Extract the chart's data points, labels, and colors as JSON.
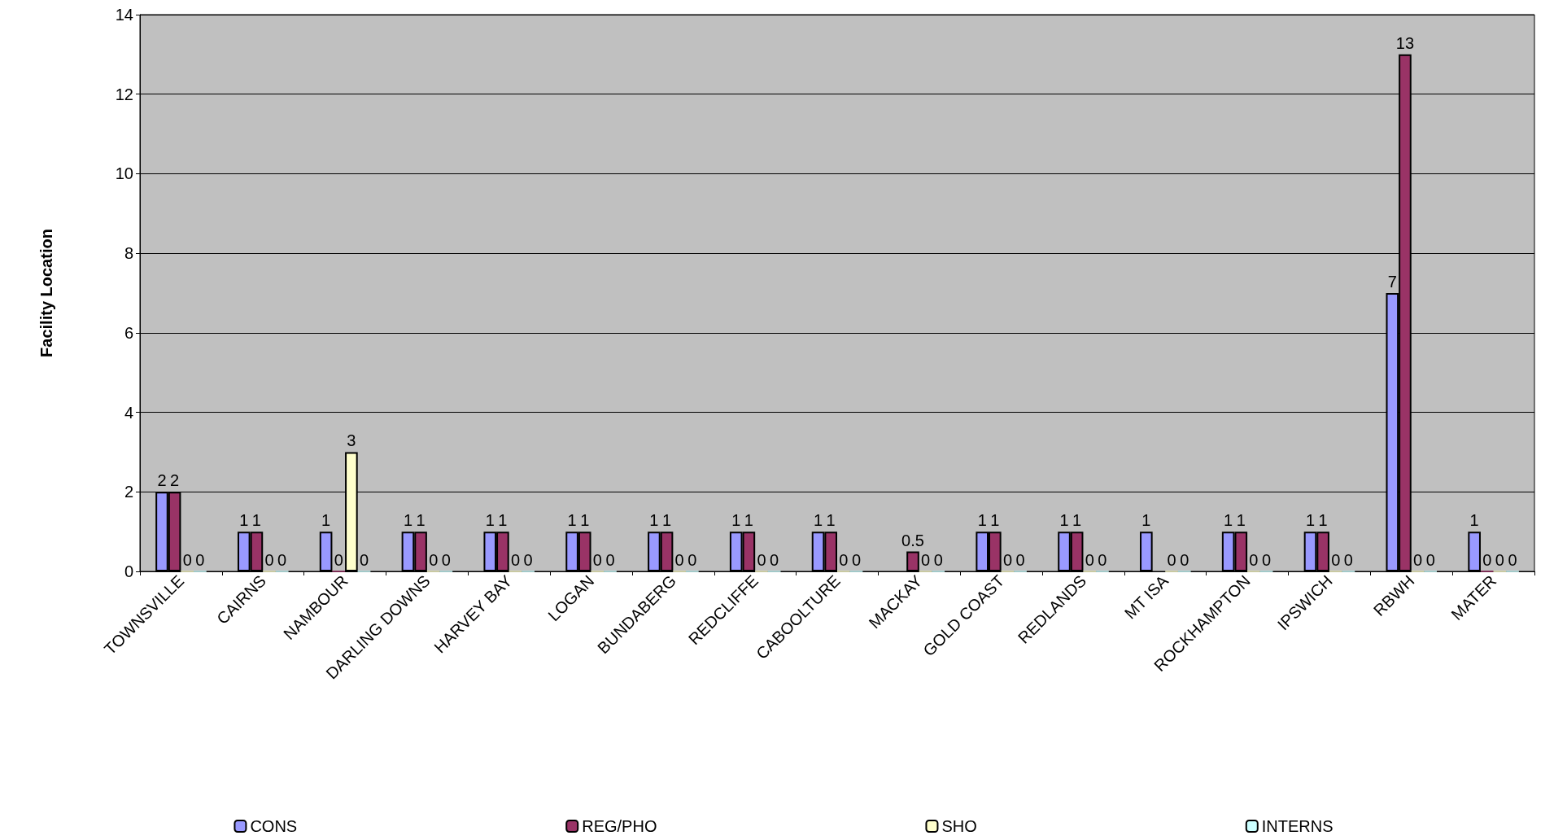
{
  "chart_data": {
    "type": "bar",
    "ylabel": "Facility Location",
    "categories": [
      "TOWNSVILLE",
      "CAIRNS",
      "NAMBOUR",
      "DARLING DOWNS",
      "HARVEY BAY",
      "LOGAN",
      "BUNDABERG",
      "REDCLIFFE",
      "CABOOLTURE",
      "MACKAY",
      "GOLD COAST",
      "REDLANDS",
      "MT ISA",
      "ROCKHAMPTON",
      "IPSWICH",
      "RBWH",
      "MATER"
    ],
    "series": [
      {
        "name": "CONS",
        "color": "#9999ff",
        "values": [
          2,
          1,
          1,
          1,
          1,
          1,
          1,
          1,
          1,
          null,
          1,
          1,
          1,
          1,
          1,
          7,
          1
        ]
      },
      {
        "name": "REG/PHO",
        "color": "#993366",
        "values": [
          2,
          1,
          0,
          1,
          1,
          1,
          1,
          1,
          1,
          0.5,
          1,
          1,
          null,
          1,
          1,
          13,
          0
        ]
      },
      {
        "name": "SHO",
        "color": "#ffffcc",
        "values": [
          0,
          0,
          3,
          0,
          0,
          0,
          0,
          0,
          0,
          0,
          0,
          0,
          0,
          0,
          0,
          0,
          0
        ]
      },
      {
        "name": "INTERNS",
        "color": "#ccffff",
        "values": [
          0,
          0,
          0,
          0,
          0,
          0,
          0,
          0,
          0,
          0,
          0,
          0,
          0,
          0,
          0,
          0,
          0
        ]
      }
    ],
    "ylim": [
      0,
      14
    ],
    "yticks": [
      0,
      2,
      4,
      6,
      8,
      10,
      12,
      14
    ],
    "grid": "y",
    "legend": "bottom",
    "data_labels": true
  }
}
